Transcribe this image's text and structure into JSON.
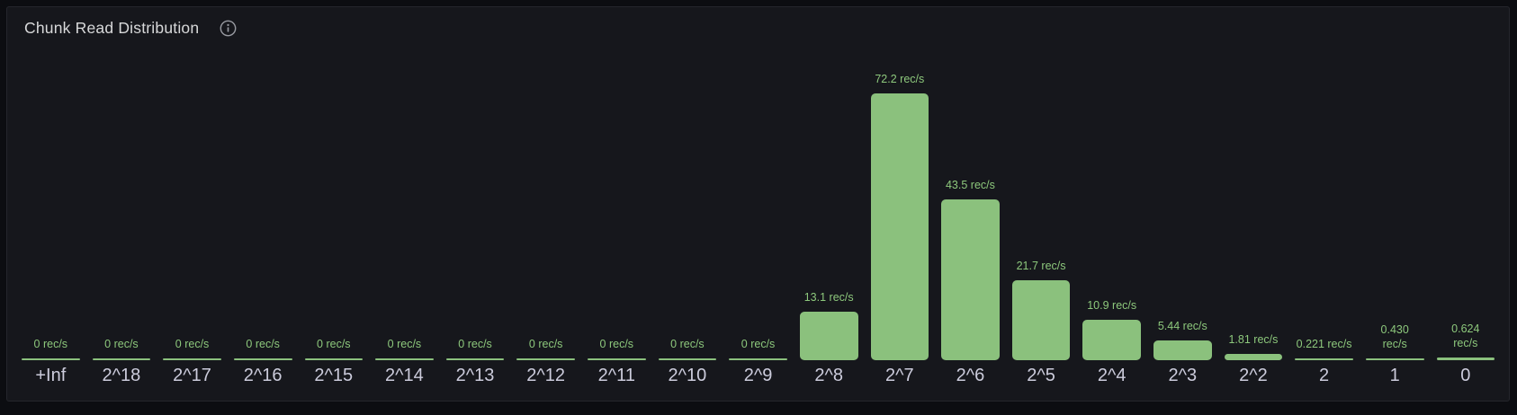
{
  "panel": {
    "title": "Chunk Read Distribution"
  },
  "chart_data": {
    "type": "bar",
    "title": "Chunk Read Distribution",
    "orientation": "vertical",
    "unit": "rec/s",
    "categories": [
      "+Inf",
      "2^18",
      "2^17",
      "2^16",
      "2^15",
      "2^14",
      "2^13",
      "2^12",
      "2^11",
      "2^10",
      "2^9",
      "2^8",
      "2^7",
      "2^6",
      "2^5",
      "2^4",
      "2^3",
      "2^2",
      "2",
      "1",
      "0"
    ],
    "values": [
      0,
      0,
      0,
      0,
      0,
      0,
      0,
      0,
      0,
      0,
      0,
      13.1,
      72.2,
      43.5,
      21.7,
      10.9,
      5.44,
      1.81,
      0.221,
      0.43,
      0.624
    ],
    "value_labels": [
      "0 rec/s",
      "0 rec/s",
      "0 rec/s",
      "0 rec/s",
      "0 rec/s",
      "0 rec/s",
      "0 rec/s",
      "0 rec/s",
      "0 rec/s",
      "0 rec/s",
      "0 rec/s",
      "13.1 rec/s",
      "72.2 rec/s",
      "43.5 rec/s",
      "21.7 rec/s",
      "10.9 rec/s",
      "5.44 rec/s",
      "1.81 rec/s",
      "0.221 rec/s",
      "0.430\nrec/s",
      "0.624\nrec/s"
    ],
    "ylim": [
      0,
      72.2
    ],
    "xlabel": "",
    "ylabel": "",
    "grid": false,
    "legend": false
  },
  "colors": {
    "page_background": "#0c0d11",
    "panel_background": "#16171c",
    "panel_border": "#25262c",
    "title_text": "#d8d9da",
    "icon": "#989aa1",
    "bar": "#8bc17d",
    "value_text": "#8dc87c",
    "axis_text": "#ccccdc"
  }
}
